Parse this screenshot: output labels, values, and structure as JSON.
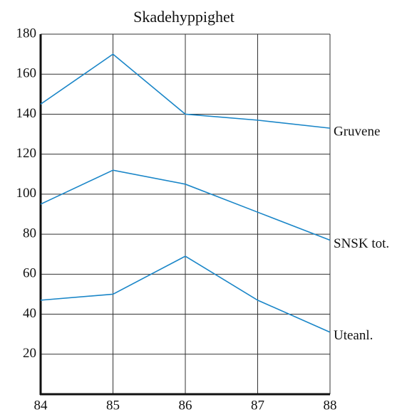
{
  "chart_data": {
    "type": "line",
    "title": "Skadehyppighet",
    "x": [
      84,
      85,
      86,
      87,
      88
    ],
    "xlim": [
      84,
      88
    ],
    "xticks": [
      84,
      85,
      86,
      87,
      88
    ],
    "ylim": [
      0,
      180
    ],
    "yticks": [
      20,
      40,
      60,
      80,
      100,
      120,
      140,
      160,
      180
    ],
    "grid": true,
    "series": [
      {
        "name": "Gruvene",
        "color": "#1a86c8",
        "values": [
          145,
          170,
          140,
          137,
          133
        ]
      },
      {
        "name": "SNSK tot.",
        "color": "#1a86c8",
        "values": [
          95,
          112,
          105,
          91,
          77
        ]
      },
      {
        "name": "Uteanl.",
        "color": "#1a86c8",
        "values": [
          47,
          50,
          69,
          47,
          31
        ]
      }
    ]
  }
}
